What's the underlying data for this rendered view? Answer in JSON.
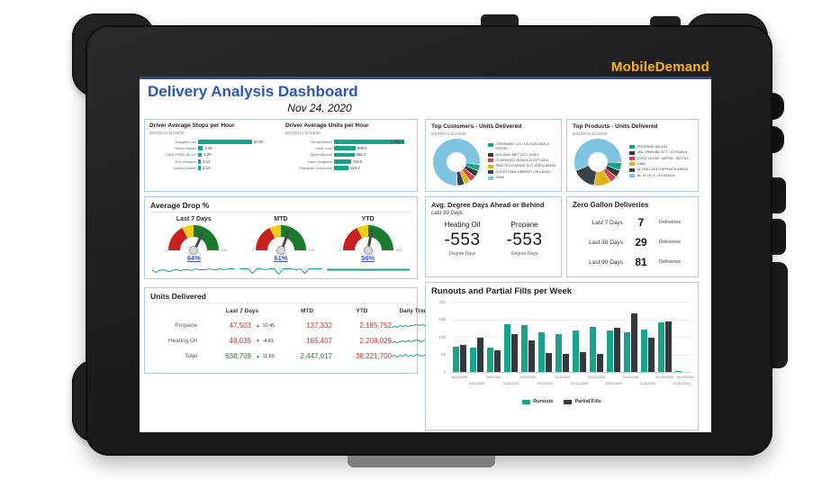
{
  "device": {
    "brand": "MobileDemand"
  },
  "header": {
    "title": "Delivery Analysis Dashboard",
    "date": "Nov 24, 2020"
  },
  "colors": {
    "accent_teal": "#18A48C",
    "dark_series": "#333A3F",
    "red_series": "#D9434E",
    "yellow_series": "#E0B41E",
    "light_blue": "#7EC4E0",
    "title_blue": "#2A56B8",
    "link_blue": "#3A50C2",
    "negative_red": "#C0392B",
    "positive_green": "#2E7D32",
    "panel_border": "#AECBEA",
    "brand_gold": "#F2B01E"
  },
  "chart_data": [
    {
      "id": "driver-stops",
      "type": "bar",
      "title": "Driver Average Stops per Hour",
      "subtitle": "8/24/20 to 11/24/20",
      "categories": [
        "Douglas Low",
        "Henry Bauter",
        "CARL PORCIELLO",
        "Eric Wharton",
        "James Maurer"
      ],
      "values": [
        60.0,
        5.45,
        4.29,
        3.14,
        3.14
      ],
      "value_labels": [
        "60.00",
        "5.45",
        "4.29",
        "3.14",
        "3.14"
      ],
      "xlim": [
        0,
        60
      ]
    },
    {
      "id": "driver-units",
      "type": "bar",
      "title": "Driver Average Units per Hour",
      "subtitle": "8/24/20 to 11/24/20",
      "categories": [
        "Henry Bauter",
        "Scott Love",
        "Steve Althaus",
        "Dave Singleton",
        "Pasquale Chiuchiolo"
      ],
      "values": [
        2953.4,
        908.5,
        852.2,
        710.6,
        618.2
      ],
      "value_labels": [
        "2,953.4",
        "908.5",
        "852.2",
        "710.6",
        "618.2"
      ],
      "xlim": [
        0,
        2953.4
      ]
    },
    {
      "id": "top-customers",
      "type": "pie",
      "title": "Top Customers - Units Delivered",
      "subtitle": "8/24/20 to 11/24/20",
      "from_deg": 180,
      "slices": [
        {
          "label": "Other",
          "color": "#7EC4E0",
          "deg": 275
        },
        {
          "label": "CHIMNANT LLC T/A SUN GAS & DIESEL",
          "color": "#18A48C",
          "deg": 14
        },
        {
          "label": "HOLIDAY MKT (077-8102)",
          "color": "#333A3F",
          "deg": 14
        },
        {
          "label": "CLAYMONT SUNOCO (077-814)",
          "color": "#D9434E",
          "deg": 14
        },
        {
          "label": "PBD TECH MGMT LLC (DPD) 80948",
          "color": "#E0B41E",
          "deg": 14
        },
        {
          "label": "DOLETOWN LIBERTY (091-8102)",
          "color": "#3B4348",
          "deg": 16
        }
      ],
      "legend_order": [
        1,
        2,
        3,
        4,
        5,
        0
      ]
    },
    {
      "id": "top-products",
      "type": "pie",
      "title": "Top Products - Units Delivered",
      "subtitle": "8/24/20 to 11/24/20",
      "from_deg": 250,
      "slices": [
        {
          "label": "NL 87 OCT - ETHANOL",
          "color": "#7EC4E0",
          "deg": 200
        },
        {
          "label": "PROPANE (BULK)",
          "color": "#18A48C",
          "deg": 18
        },
        {
          "label": "UNL 90/89/86 OCT - ETHANOL",
          "color": "#333A3F",
          "deg": 16
        },
        {
          "label": "DYED ULSDF 15PPM - NO TAX",
          "color": "#D9434E",
          "deg": 16
        },
        {
          "label": "Other",
          "color": "#E0B41E",
          "deg": 40
        },
        {
          "label": "ULTRA LSDF/15PPM/TAXABLE",
          "color": "#3B4348",
          "deg": 58
        }
      ],
      "legend_order": [
        1,
        2,
        3,
        4,
        5,
        0
      ]
    },
    {
      "id": "avg-drop",
      "type": "gauge",
      "title": "Average Drop %",
      "ticks": [
        "0",
        "50",
        "100"
      ],
      "bands": [
        {
          "color": "#C9211E",
          "to_deg": 63
        },
        {
          "color": "#F2CE16",
          "to_deg": 90
        },
        {
          "color": "#1A7A2E",
          "to_deg": 180
        }
      ],
      "gauges": [
        {
          "label": "Last 7 Days",
          "value": 64,
          "display": "64%",
          "spark": [
            5,
            2,
            4,
            5,
            4,
            3,
            5,
            5,
            4,
            5,
            5,
            4,
            6,
            5,
            5,
            5,
            6,
            5,
            5,
            6,
            5,
            6,
            6,
            6
          ]
        },
        {
          "label": "MTD",
          "value": 61,
          "display": "61%",
          "spark": [
            6,
            6,
            6,
            1,
            6,
            6,
            5,
            6,
            6,
            0,
            6,
            6,
            6,
            5,
            6,
            1,
            6,
            6,
            6,
            6
          ]
        },
        {
          "label": "YTD",
          "value": 56,
          "display": "56%",
          "spark": [
            5,
            5,
            5,
            5,
            5,
            5,
            5,
            5
          ]
        }
      ]
    },
    {
      "id": "degree-days",
      "title": "Avg. Degree Days Ahead or Behind",
      "subtitle": "Last 90 Days",
      "items": [
        {
          "label": "Heating Oil",
          "value": "-553",
          "unit": "Degree Days"
        },
        {
          "label": "Propane",
          "value": "-553",
          "unit": "Degree Days"
        }
      ]
    },
    {
      "id": "zero-gallon",
      "title": "Zero Gallon Deliveries",
      "rows": [
        {
          "label": "Last 7 Days",
          "value": "7",
          "unit": "Deliveries"
        },
        {
          "label": "Last 30 Days",
          "value": "29",
          "unit": "Deliveries"
        },
        {
          "label": "Last 90 Days",
          "value": "81",
          "unit": "Deliveries"
        }
      ]
    },
    {
      "id": "units-delivered",
      "type": "table",
      "title": "Units Delivered",
      "columns": [
        "",
        "Last 7 Days",
        "MTD",
        "YTD",
        "Daily Trend"
      ],
      "rows": [
        {
          "label": "Propane",
          "last7": "47,503",
          "last7_color": "#C0392B",
          "delta": "10.45",
          "delta_dir": "up",
          "mtd": "137,332",
          "mtd_color": "#C0392B",
          "ytd": "2,185,752",
          "ytd_color": "#C0392B",
          "spark": [
            3,
            4,
            3,
            5,
            4,
            5,
            4,
            5,
            5,
            6,
            5,
            6,
            5,
            7,
            6,
            7,
            7,
            8
          ]
        },
        {
          "label": "Heating Oil",
          "last7": "48,035",
          "last7_color": "#C0392B",
          "delta": "-4.81",
          "delta_dir": "down",
          "mtd": "165,407",
          "mtd_color": "#C0392B",
          "ytd": "2,208,029",
          "ytd_color": "#C0392B",
          "spark": [
            3,
            4,
            3,
            4,
            5,
            4,
            5,
            4,
            5,
            6,
            5,
            4,
            6,
            8,
            5,
            7,
            9,
            6
          ]
        },
        {
          "label": "Total",
          "last7": "638,709",
          "last7_color": "#2E7D32",
          "delta": "11.60",
          "delta_dir": "up",
          "mtd": "2,447,017",
          "mtd_color": "#2E7D32",
          "ytd": "38,221,700",
          "ytd_color": "#C0392B",
          "spark": [
            5,
            6,
            4,
            6,
            5,
            7,
            5,
            6,
            5,
            7,
            6,
            5,
            6,
            7,
            6,
            7,
            6,
            7
          ]
        }
      ]
    },
    {
      "id": "runouts",
      "type": "bar",
      "title": "Runouts and Partial Fills per Week",
      "categories": [
        "8/23/2020",
        "8/30/2020",
        "9/6/2020",
        "9/13/2020",
        "9/20/2020",
        "9/27/2020",
        "10/4/2020",
        "10/11/2020",
        "10/18/2020",
        "10/25/2020",
        "11/1/2020",
        "11/8/2020",
        "11/15/2020",
        "11/22/2020",
        "11/29/2020"
      ],
      "series": [
        {
          "name": "Runouts",
          "color": "#18A48C",
          "values": [
            71,
            70,
            70,
            136,
            133,
            114,
            109,
            117,
            128,
            118,
            113,
            120,
            140,
            2,
            0
          ]
        },
        {
          "name": "Partial Fills",
          "color": "#333A3F",
          "values": [
            76,
            97,
            61,
            109,
            91,
            53,
            51,
            56,
            52,
            127,
            167,
            98,
            144,
            0,
            0
          ]
        }
      ],
      "ylim": [
        0,
        200
      ],
      "yticks": [
        200,
        150,
        100,
        50,
        0
      ]
    }
  ]
}
